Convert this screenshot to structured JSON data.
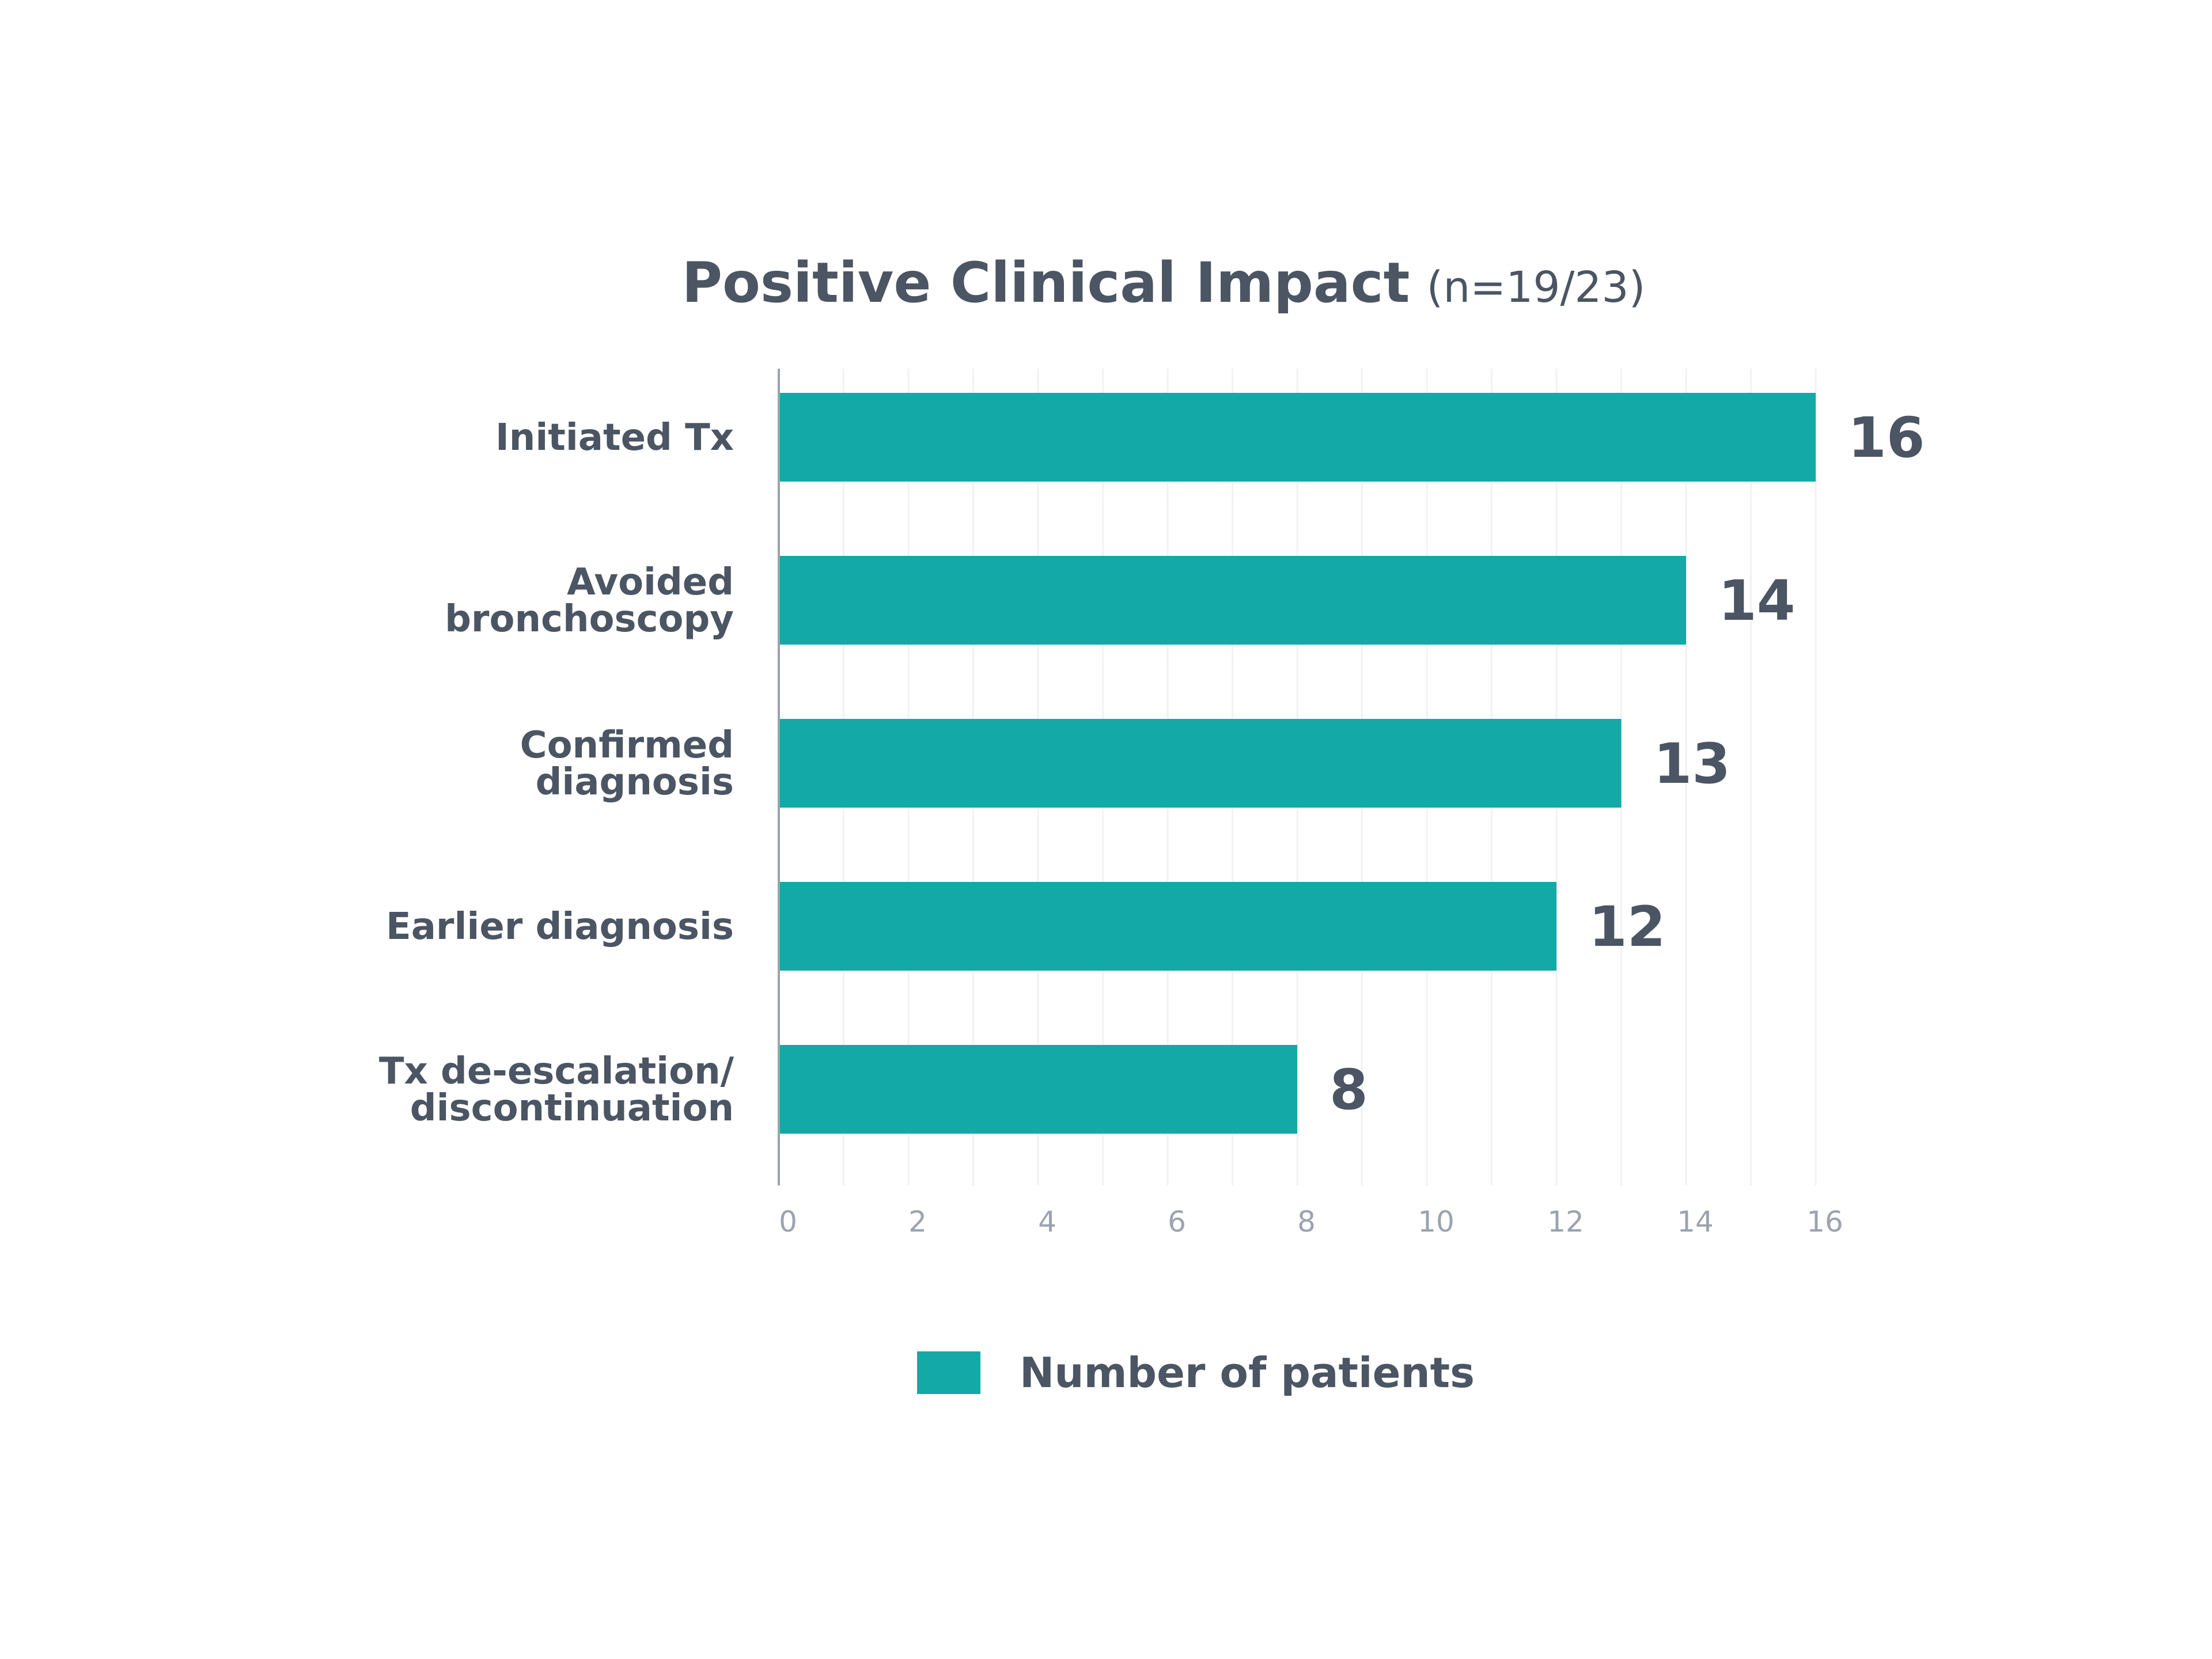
{
  "chart_data": {
    "type": "bar",
    "orientation": "horizontal",
    "title": "Positive Clinical Impact",
    "subtitle": "(n=19/23)",
    "categories": [
      [
        "Initiated Tx"
      ],
      [
        "Avoided",
        "bronchoscopy"
      ],
      [
        "Confirmed",
        "diagnosis"
      ],
      [
        "Earlier diagnosis"
      ],
      [
        "Tx de-escalation/",
        "discontinuation"
      ]
    ],
    "series": [
      {
        "name": "Number of patients",
        "values": [
          16,
          14,
          13,
          12,
          8
        ]
      }
    ],
    "data_labels": [
      "16",
      "14",
      "13",
      "12",
      "8"
    ],
    "xticks": [
      "0",
      "2",
      "4",
      "6",
      "8",
      "10",
      "12",
      "14",
      "16"
    ],
    "xlim": [
      0,
      16
    ],
    "xlabel": "",
    "ylabel": "",
    "grid": true,
    "legend": "bottom-center"
  },
  "colors": {
    "bar": "#12a9a7",
    "text": "#4b5563",
    "tick": "#9ca3af",
    "grid": "#f1f2f4",
    "axis": "#9ca3af"
  }
}
